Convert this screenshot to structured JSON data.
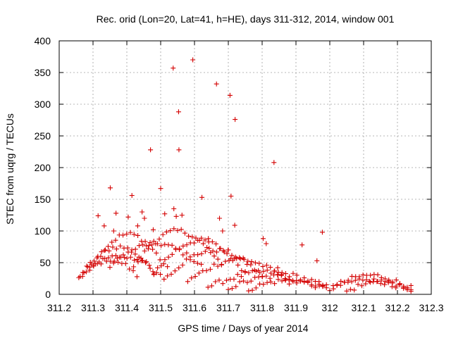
{
  "chart_data": {
    "type": "scatter",
    "title": "Rec. orid (Lon=20, Lat=41, h=HE), days 311-312, 2014, window 001",
    "xlabel": "GPS time / Days of year 2014",
    "ylabel": "STEC from uqrg / TECUs",
    "xlim": [
      311.2,
      312.3
    ],
    "ylim": [
      0,
      400
    ],
    "x_ticks": [
      "311.2",
      "311.3",
      "311.4",
      "311.5",
      "311.6",
      "311.7",
      "311.8",
      "311.9",
      "312",
      "312.1",
      "312.2",
      "312.3"
    ],
    "y_ticks": [
      "0",
      "50",
      "100",
      "150",
      "200",
      "250",
      "300",
      "350",
      "400"
    ],
    "grid": true,
    "marker": "+",
    "color": "#d40000",
    "series": [
      {
        "name": "STEC",
        "x": [
          311.351,
          311.368,
          311.415,
          311.47,
          311.5,
          311.537,
          311.553,
          311.554,
          311.595,
          311.622,
          311.665,
          311.674,
          311.705,
          311.708,
          311.72,
          311.835,
          311.978,
          311.315,
          311.333,
          311.361,
          311.404,
          311.432,
          311.445,
          311.452,
          311.478,
          311.512,
          311.539,
          311.546,
          311.563,
          311.641,
          311.683,
          311.7,
          311.719,
          311.803,
          311.812,
          311.846,
          311.918,
          311.962
        ],
        "y": [
          168,
          128,
          156,
          228,
          167,
          357,
          288,
          228,
          370,
          153,
          332,
          120,
          314,
          155,
          276,
          208,
          98,
          124,
          108,
          100,
          122,
          108,
          130,
          120,
          102,
          127,
          135,
          123,
          125,
          88,
          100,
          70,
          109,
          88,
          80,
          42,
          78,
          53
        ]
      }
    ]
  }
}
